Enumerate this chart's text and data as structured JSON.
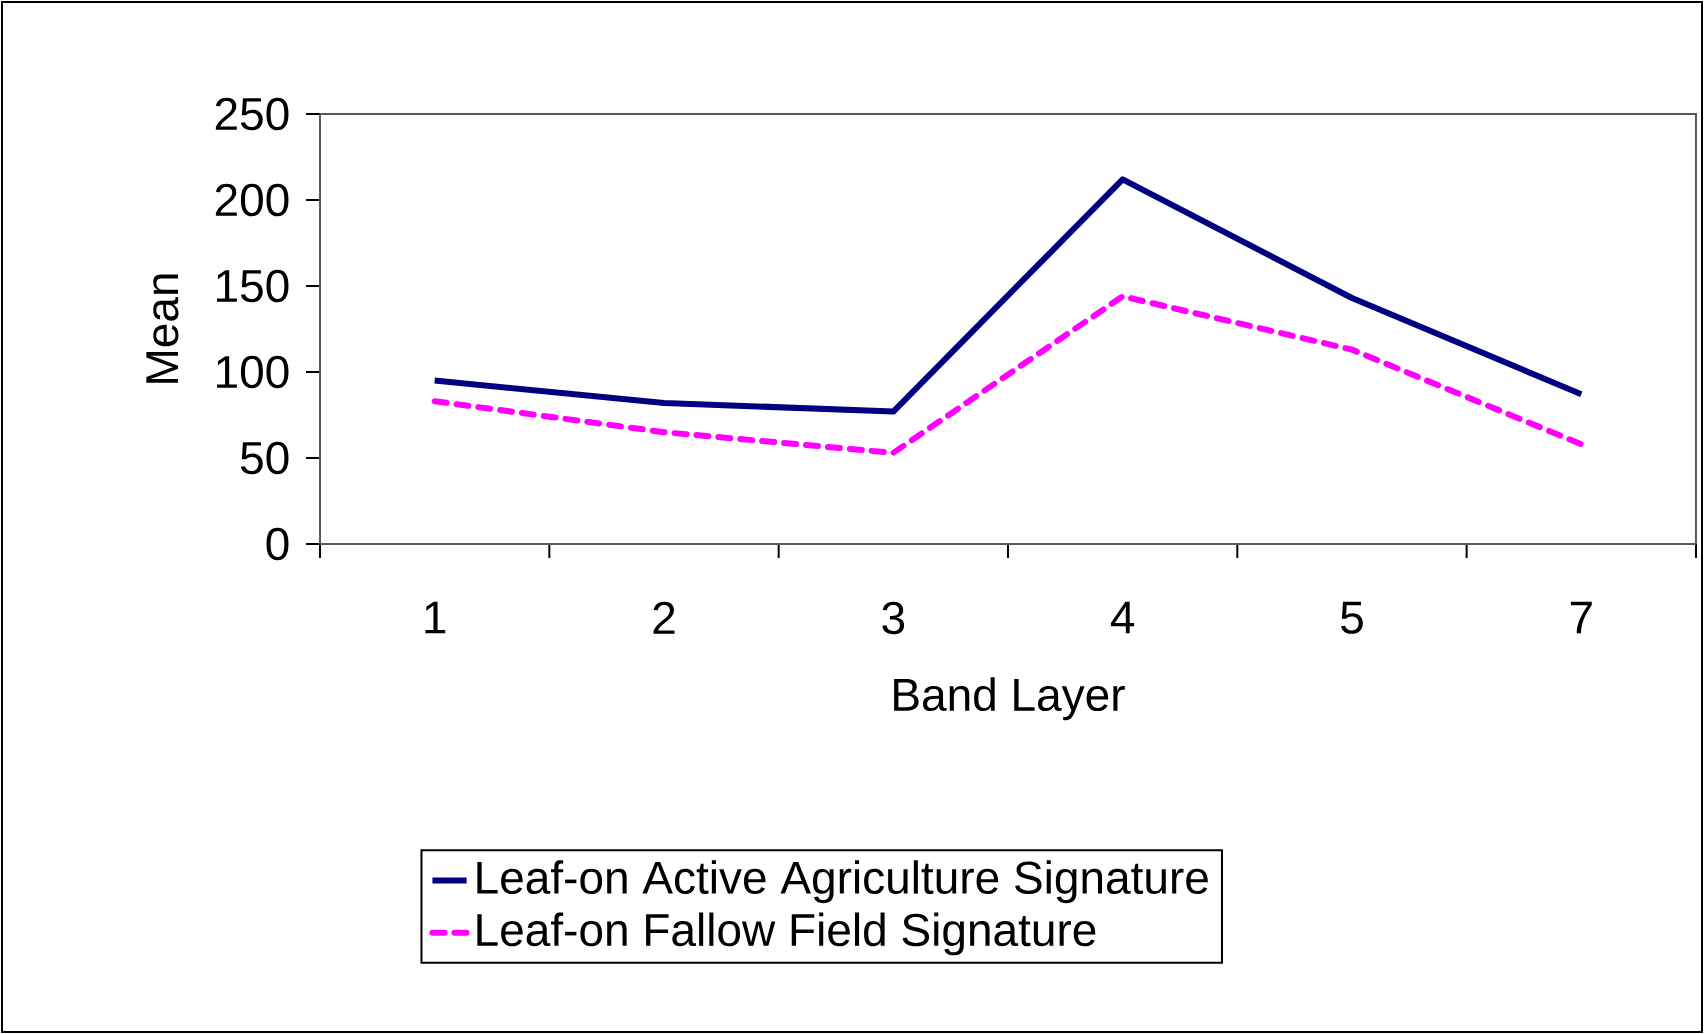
{
  "chart_data": {
    "type": "line",
    "xlabel": "Band Layer",
    "ylabel": "Mean",
    "categories": [
      "1",
      "2",
      "3",
      "4",
      "5",
      "7"
    ],
    "series": [
      {
        "name": "Leaf-on Active Agriculture Signature",
        "color": "#000080",
        "line_style": "solid",
        "values": [
          95,
          82,
          77,
          212,
          143,
          87
        ]
      },
      {
        "name": "Leaf-on Fallow Field Signature",
        "color": "#ff00ff",
        "line_style": "dashed",
        "values": [
          83,
          65,
          53,
          144,
          113,
          58
        ]
      }
    ],
    "ylim": [
      0,
      250
    ],
    "yticks": [
      0,
      50,
      100,
      150,
      200,
      250
    ],
    "grid": false,
    "legend": "bottom",
    "marker": "none"
  }
}
